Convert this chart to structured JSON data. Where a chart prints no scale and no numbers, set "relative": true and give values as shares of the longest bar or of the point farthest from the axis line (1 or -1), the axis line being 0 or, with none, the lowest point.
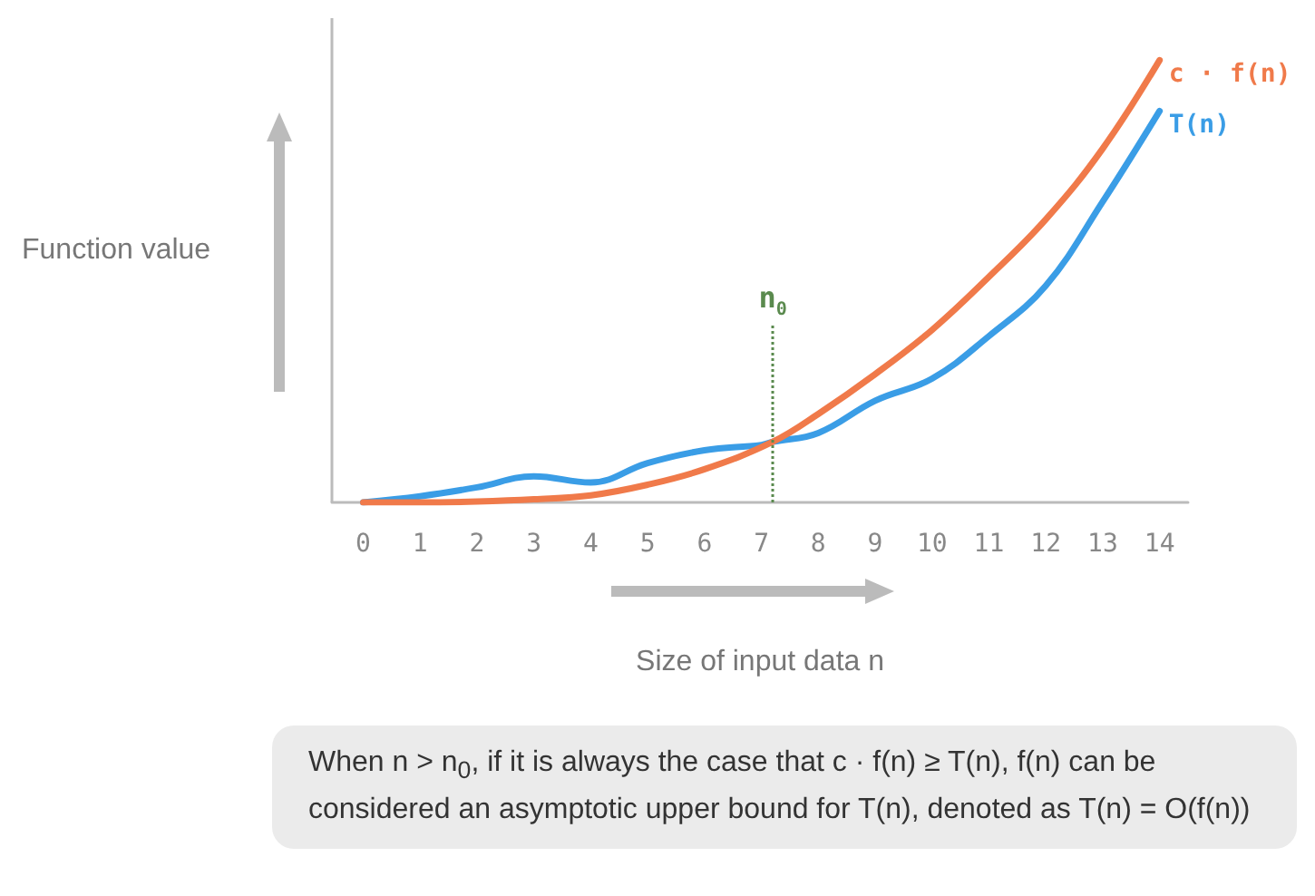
{
  "chart_data": {
    "type": "line",
    "relative": true,
    "xlabel": "Size of input data n",
    "ylabel": "Function value",
    "xlim": [
      -0.55,
      14.5
    ],
    "xticks": [
      0,
      1,
      2,
      3,
      4,
      5,
      6,
      7,
      8,
      9,
      10,
      11,
      12,
      13,
      14
    ],
    "series": [
      {
        "name": "c · f(n)",
        "color": "#f07a4a",
        "x": [
          0,
          1,
          2,
          3,
          4,
          5,
          6,
          7.2,
          8,
          9,
          10,
          11,
          12,
          13,
          14
        ],
        "values": [
          0,
          0,
          0.002,
          0.007,
          0.016,
          0.04,
          0.075,
          0.137,
          0.2,
          0.29,
          0.39,
          0.51,
          0.64,
          0.8,
          1
        ]
      },
      {
        "name": "T(n)",
        "color": "#3a9de6",
        "x": [
          0,
          1,
          2,
          3,
          4,
          5,
          6,
          7,
          7.2,
          8,
          9,
          10,
          11,
          12,
          13,
          14
        ],
        "values": [
          0,
          0.014,
          0.034,
          0.059,
          0.045,
          0.089,
          0.118,
          0.13,
          0.137,
          0.157,
          0.23,
          0.28,
          0.376,
          0.49,
          0.68,
          0.885
        ]
      }
    ],
    "ref_lines": [
      {
        "axis": "x",
        "value": 7.2,
        "label": "n$_{0}$",
        "color": "#5a8a4e",
        "line_style": "dotted"
      }
    ],
    "annotations": [
      "When n > n$_{0}$, if it is always the case that c · f(n) ≥ T(n), f(n) can be considered an asymptotic upper bound for T(n), denoted as T(n) = O(f(n))"
    ],
    "grid": false,
    "legend": false,
    "marker": "none",
    "line_style": "solid"
  }
}
